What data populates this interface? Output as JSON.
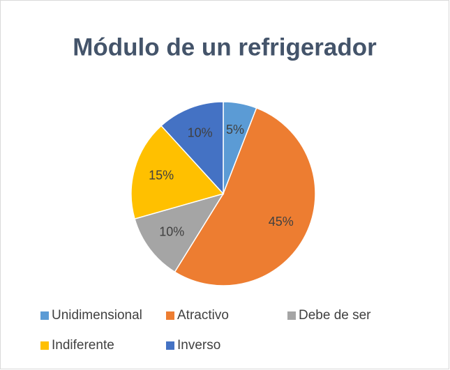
{
  "chart_data": {
    "type": "pie",
    "title": "Módulo de un refrigerador",
    "categories": [
      "Unidimensional",
      "Atractivo",
      "Debe de ser",
      "Indiferente",
      "Inverso"
    ],
    "values": [
      5,
      45,
      10,
      15,
      10
    ],
    "value_labels": [
      "5%",
      "45%",
      "10%",
      "15%",
      "10%"
    ],
    "colors": [
      "#5b9bd5",
      "#ed7d31",
      "#a5a5a5",
      "#ffc000",
      "#4472c4"
    ],
    "legend": "bottom"
  }
}
